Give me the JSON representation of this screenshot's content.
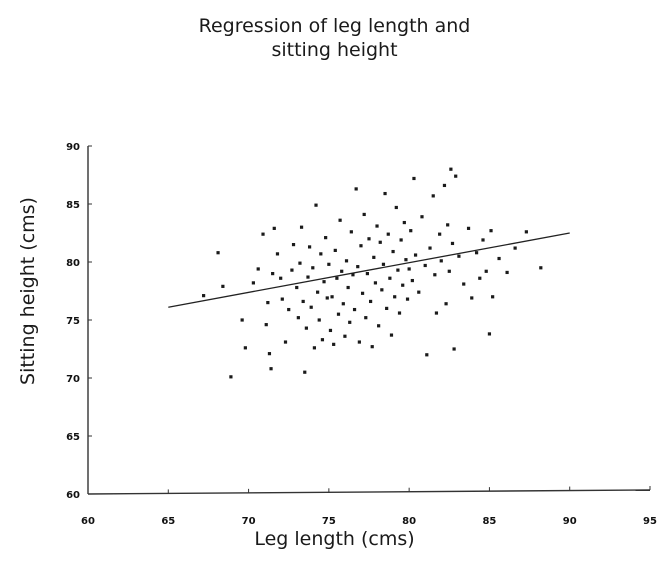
{
  "chart_data": {
    "type": "scatter",
    "title_lines": [
      "Regression of leg length and",
      "sitting height"
    ],
    "xlabel": "Leg length (cms)",
    "ylabel": "Sitting height (cms)",
    "xlim": [
      60,
      95
    ],
    "ylim": [
      60,
      90
    ],
    "xticks": [
      "60",
      "65",
      "70",
      "75",
      "80",
      "85",
      "90",
      "95"
    ],
    "yticks": [
      "60",
      "65",
      "70",
      "75",
      "80",
      "85",
      "90"
    ],
    "grid": false,
    "legend": "none",
    "colors": {
      "points": "#1a1a1a",
      "line": "#222222",
      "axes": "#333333"
    },
    "regression_line": {
      "x": [
        65,
        90
      ],
      "y": [
        76.1,
        82.5
      ]
    },
    "points": [
      [
        67.2,
        77.1
      ],
      [
        68.1,
        80.8
      ],
      [
        68.4,
        77.9
      ],
      [
        68.9,
        70.1
      ],
      [
        69.6,
        75.0
      ],
      [
        69.8,
        72.6
      ],
      [
        70.3,
        78.2
      ],
      [
        70.6,
        79.4
      ],
      [
        70.9,
        82.4
      ],
      [
        71.1,
        74.6
      ],
      [
        71.2,
        76.5
      ],
      [
        71.3,
        72.1
      ],
      [
        71.4,
        70.8
      ],
      [
        71.5,
        79.0
      ],
      [
        71.6,
        82.9
      ],
      [
        71.8,
        80.7
      ],
      [
        72.0,
        78.6
      ],
      [
        72.1,
        76.8
      ],
      [
        72.3,
        73.1
      ],
      [
        72.5,
        75.9
      ],
      [
        72.7,
        79.3
      ],
      [
        72.8,
        81.5
      ],
      [
        73.0,
        77.8
      ],
      [
        73.1,
        75.2
      ],
      [
        73.2,
        79.9
      ],
      [
        73.3,
        83.0
      ],
      [
        73.4,
        76.6
      ],
      [
        73.5,
        70.5
      ],
      [
        73.6,
        74.3
      ],
      [
        73.7,
        78.7
      ],
      [
        73.8,
        81.3
      ],
      [
        73.9,
        76.1
      ],
      [
        74.0,
        79.5
      ],
      [
        74.1,
        72.6
      ],
      [
        74.2,
        84.9
      ],
      [
        74.3,
        77.4
      ],
      [
        74.4,
        75.0
      ],
      [
        74.5,
        80.7
      ],
      [
        74.6,
        73.3
      ],
      [
        74.7,
        78.3
      ],
      [
        74.8,
        82.1
      ],
      [
        74.9,
        76.9
      ],
      [
        75.0,
        79.8
      ],
      [
        75.1,
        74.1
      ],
      [
        75.2,
        77.0
      ],
      [
        75.3,
        72.9
      ],
      [
        75.4,
        81.0
      ],
      [
        75.5,
        78.6
      ],
      [
        75.6,
        75.5
      ],
      [
        75.7,
        83.6
      ],
      [
        75.8,
        79.2
      ],
      [
        75.9,
        76.4
      ],
      [
        76.0,
        73.6
      ],
      [
        76.1,
        80.1
      ],
      [
        76.2,
        77.8
      ],
      [
        76.3,
        74.8
      ],
      [
        76.4,
        82.6
      ],
      [
        76.5,
        78.9
      ],
      [
        76.6,
        75.9
      ],
      [
        76.7,
        86.3
      ],
      [
        76.8,
        79.6
      ],
      [
        76.9,
        73.1
      ],
      [
        77.0,
        81.4
      ],
      [
        77.1,
        77.3
      ],
      [
        77.2,
        84.1
      ],
      [
        77.3,
        75.2
      ],
      [
        77.4,
        79.0
      ],
      [
        77.5,
        82.0
      ],
      [
        77.6,
        76.6
      ],
      [
        77.7,
        72.7
      ],
      [
        77.8,
        80.4
      ],
      [
        77.9,
        78.2
      ],
      [
        78.0,
        83.1
      ],
      [
        78.1,
        74.5
      ],
      [
        78.2,
        81.7
      ],
      [
        78.3,
        77.6
      ],
      [
        78.4,
        79.8
      ],
      [
        78.5,
        85.9
      ],
      [
        78.6,
        76.0
      ],
      [
        78.7,
        82.4
      ],
      [
        78.8,
        78.6
      ],
      [
        78.9,
        73.7
      ],
      [
        79.0,
        80.9
      ],
      [
        79.1,
        77.0
      ],
      [
        79.2,
        84.7
      ],
      [
        79.3,
        79.3
      ],
      [
        79.4,
        75.6
      ],
      [
        79.5,
        81.9
      ],
      [
        79.6,
        78.0
      ],
      [
        79.7,
        83.4
      ],
      [
        79.8,
        80.2
      ],
      [
        79.9,
        76.8
      ],
      [
        80.0,
        79.4
      ],
      [
        80.1,
        82.7
      ],
      [
        80.2,
        78.4
      ],
      [
        80.3,
        87.2
      ],
      [
        80.4,
        80.6
      ],
      [
        80.6,
        77.4
      ],
      [
        80.8,
        83.9
      ],
      [
        81.0,
        79.7
      ],
      [
        81.1,
        72.0
      ],
      [
        81.3,
        81.2
      ],
      [
        81.5,
        85.7
      ],
      [
        81.6,
        78.9
      ],
      [
        81.7,
        75.6
      ],
      [
        81.9,
        82.4
      ],
      [
        82.0,
        80.1
      ],
      [
        82.2,
        86.6
      ],
      [
        82.3,
        76.4
      ],
      [
        82.4,
        83.2
      ],
      [
        82.5,
        79.2
      ],
      [
        82.6,
        88.0
      ],
      [
        82.7,
        81.6
      ],
      [
        82.8,
        72.5
      ],
      [
        82.9,
        87.4
      ],
      [
        83.1,
        80.5
      ],
      [
        83.4,
        78.1
      ],
      [
        83.7,
        82.9
      ],
      [
        83.9,
        76.9
      ],
      [
        84.2,
        80.8
      ],
      [
        84.4,
        78.6
      ],
      [
        84.6,
        81.9
      ],
      [
        84.8,
        79.2
      ],
      [
        85.0,
        73.8
      ],
      [
        85.1,
        82.7
      ],
      [
        85.2,
        77.0
      ],
      [
        85.6,
        80.3
      ],
      [
        86.1,
        79.1
      ],
      [
        86.6,
        81.2
      ],
      [
        87.3,
        82.6
      ],
      [
        88.2,
        79.5
      ]
    ]
  }
}
